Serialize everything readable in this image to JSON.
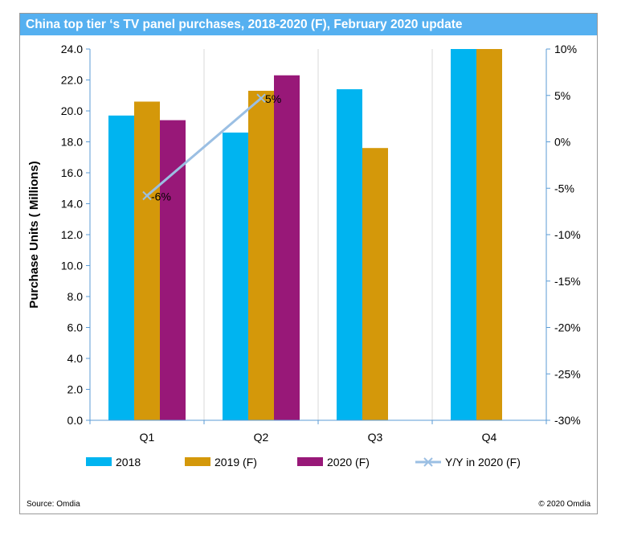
{
  "chart_data": {
    "type": "bar",
    "title": "China top tier ‘s TV panel purchases, 2018-2020 (F), February 2020 update",
    "categories": [
      "Q1",
      "Q2",
      "Q3",
      "Q4"
    ],
    "ylabel": "Purchase Units ( Millions)",
    "ylim": [
      0,
      24
    ],
    "yticks": [
      "0.0",
      "2.0",
      "4.0",
      "6.0",
      "8.0",
      "10.0",
      "12.0",
      "14.0",
      "16.0",
      "18.0",
      "20.0",
      "22.0",
      "24.0"
    ],
    "y2lim": [
      -30,
      10
    ],
    "y2ticks": [
      "-30%",
      "-25%",
      "-20%",
      "-15%",
      "-10%",
      "-5%",
      "0%",
      "5%",
      "10%"
    ],
    "series": [
      {
        "name": "2018",
        "color": "#00b4f0",
        "values": [
          19.7,
          18.6,
          21.4,
          24.0
        ]
      },
      {
        "name": "2019 (F)",
        "color": "#d4980a",
        "values": [
          20.6,
          21.3,
          17.6,
          24.0
        ]
      },
      {
        "name": "2020 (F)",
        "color": "#981878",
        "values": [
          19.4,
          22.3,
          null,
          null
        ]
      }
    ],
    "line_series": {
      "name": "Y/Y in 2020 (F)",
      "color": "#9bbfe3",
      "values": [
        -5.8,
        4.7
      ],
      "labels": [
        "-6%",
        "5%"
      ]
    },
    "legend_position": "bottom",
    "grid": false
  },
  "footer": {
    "source": "Source: Omdia",
    "copyright": "© 2020 Omdia"
  }
}
